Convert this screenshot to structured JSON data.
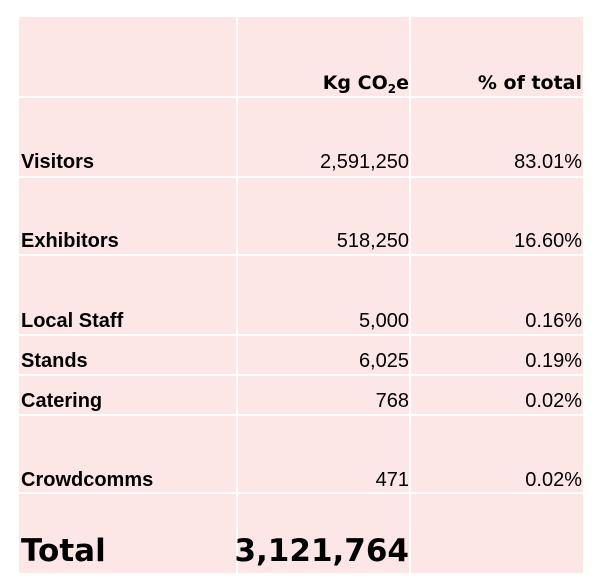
{
  "header": {
    "kg_label": "Kg CO",
    "kg_sub": "2",
    "kg_suffix": "e",
    "pct_label": "% of total"
  },
  "rows": [
    {
      "label": "Visitors",
      "kg": "2,591,250",
      "pct": "83.01%"
    },
    {
      "label": "Exhibitors",
      "kg": "518,250",
      "pct": "16.60%"
    },
    {
      "label": "Local Staff",
      "kg": "5,000",
      "pct": "0.16%"
    },
    {
      "label": "Stands",
      "kg": "6,025",
      "pct": "0.19%"
    },
    {
      "label": "Catering",
      "kg": "768",
      "pct": "0.02%"
    },
    {
      "label": "Crowdcomms",
      "kg": "471",
      "pct": "0.02%"
    }
  ],
  "total": {
    "label": "Total",
    "kg": "3,121,764"
  }
}
